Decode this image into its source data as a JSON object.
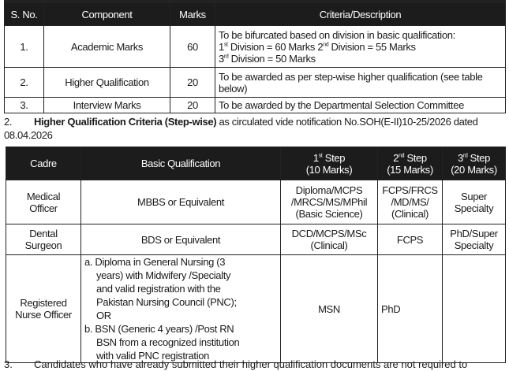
{
  "table1": {
    "headers": [
      "S. No.",
      "Component",
      "Marks",
      "Criteria/Description"
    ],
    "rows": [
      {
        "sno": "1.",
        "component": "Academic Marks",
        "marks": "60",
        "desc_line1": "To be bifurcated based on division in basic qualification:",
        "div1_ord": "1",
        "div1_sup": "st",
        "div1_text": " Division = 60 Marks ",
        "div2_ord": "2",
        "div2_sup": "nd",
        "div2_text": " Division = 55 Marks",
        "div3_ord": "3",
        "div3_sup": "rd",
        "div3_text": " Division = 50 Marks"
      },
      {
        "sno": "2.",
        "component": "Higher Qualification",
        "marks": "20",
        "desc": "To be awarded as per step-wise higher qualification (see table below)"
      },
      {
        "sno": "3.",
        "component": "Interview Marks",
        "marks": "20",
        "desc": "To be awarded by the Departmental Selection Committee"
      }
    ]
  },
  "para2": {
    "number": "2.",
    "bold": "Higher Qualification Criteria (Step-wise)",
    "text": " as circulated vide notification No.SOH(E-II)10-25/2026 dated 08.04.2026"
  },
  "table2": {
    "headers": {
      "cadre": "Cadre",
      "basic": "Basic Qualification",
      "step1_ord": "1",
      "step1_sup": "st",
      "step1_label": " Step",
      "step1_marks": "(10 Marks)",
      "step2_ord": "2",
      "step2_sup": "nd",
      "step2_label": " Step",
      "step2_marks": "(15 Marks)",
      "step3_ord": "3",
      "step3_sup": "rd",
      "step3_label": " Step",
      "step3_marks": "(20 Marks)"
    },
    "rows": [
      {
        "cadre": "Medical Officer",
        "basic": "MBBS or Equivalent",
        "step1": "Diploma/MCPS /MRCS/MS/MPhil (Basic Science)",
        "step2": "FCPS/FRCS /MD/MS/ (Clinical)",
        "step3": "Super Specialty"
      },
      {
        "cadre": "Dental Surgeon",
        "basic": "BDS or Equivalent",
        "step1": "DCD/MCPS/MSc (Clinical)",
        "step2": "FCPS",
        "step3": "PhD/Super Specialty"
      },
      {
        "cadre": "Registered Nurse Officer",
        "basic_a": "a. Diploma in General Nursing (3 years) with Midwifery /Specialty and valid registration with the Pakistan Nursing Council (PNC); OR",
        "basic_b": "b. BSN (Generic 4 years) /Post RN BSN from a recognized institution with valid PNC registration",
        "step1": "MSN",
        "step2": "PhD",
        "step3": ""
      }
    ]
  },
  "para3": {
    "number": "3.",
    "text": "Candidates who have already submitted their higher qualification documents are not required to"
  }
}
